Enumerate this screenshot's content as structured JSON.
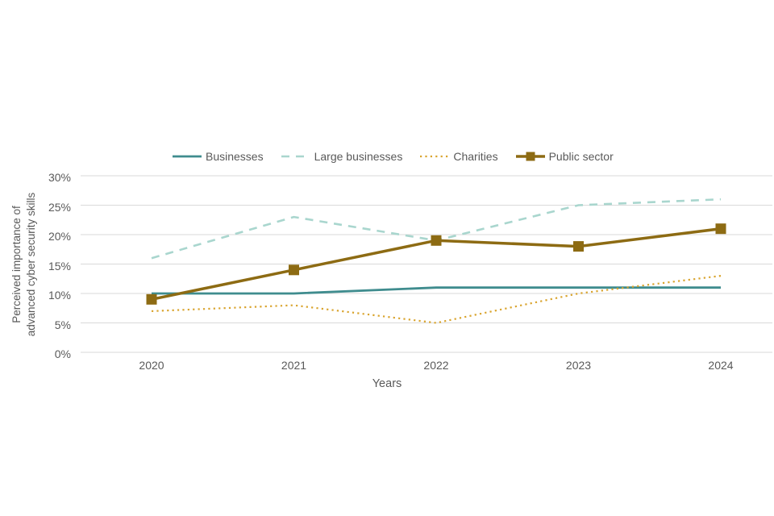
{
  "page": {
    "background_color": "#ffffff",
    "text_color": "#595959",
    "gridline_color": "#d9d9d9"
  },
  "chart_data": {
    "type": "line",
    "title": "",
    "xlabel": "Years",
    "ylabel": "Perceived importance of advanced cyber security skills",
    "ylabel_lines": [
      "Perceived importance of",
      "advanced cyber security skills"
    ],
    "categories": [
      "2020",
      "2021",
      "2022",
      "2023",
      "2024"
    ],
    "series": [
      {
        "name": "Businesses",
        "color": "#3f8c8e",
        "line_style": "solid",
        "line_width": 2.8,
        "marker": "none",
        "values": [
          10,
          10,
          11,
          11,
          11
        ]
      },
      {
        "name": "Large businesses",
        "color": "#a9d6ce",
        "line_style": "dashed",
        "line_width": 2.6,
        "marker": "none",
        "values": [
          16,
          23,
          19,
          25,
          26
        ]
      },
      {
        "name": "Charities",
        "color": "#d9a42e",
        "line_style": "dotted",
        "line_width": 2.2,
        "marker": "none",
        "values": [
          7,
          8,
          5,
          10,
          13
        ]
      },
      {
        "name": "Public sector",
        "color": "#8d6b13",
        "line_style": "solid",
        "line_width": 3.5,
        "marker": "square",
        "values": [
          9,
          14,
          19,
          18,
          21
        ]
      }
    ],
    "yticks": [
      {
        "label": "30%",
        "value": 30
      },
      {
        "label": "25%",
        "value": 25
      },
      {
        "label": "20%",
        "value": 20
      },
      {
        "label": "15%",
        "value": 15
      },
      {
        "label": "10%",
        "value": 10
      },
      {
        "label": "5%",
        "value": 5
      },
      {
        "label": "0%",
        "value": 0
      }
    ],
    "ylim": [
      0,
      30
    ],
    "grid": true,
    "legend_position": "top"
  }
}
